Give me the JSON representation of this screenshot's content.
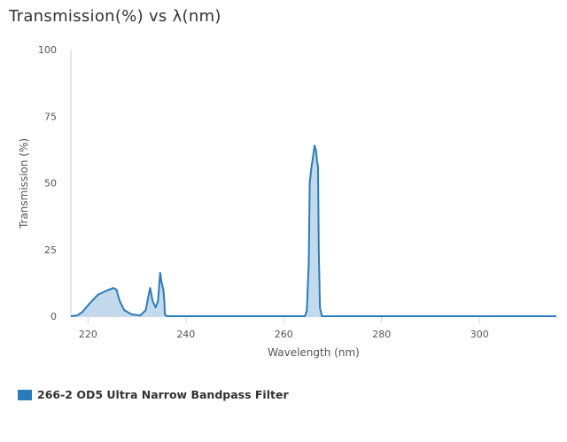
{
  "title": "Transmission(%) vs λ(nm)",
  "chart_data": {
    "type": "area",
    "title": "Transmission(%) vs λ(nm)",
    "xlabel": "Wavelength (nm)",
    "ylabel": "Transmission (%)",
    "xlim": [
      216.5,
      315.7
    ],
    "ylim": [
      0,
      100
    ],
    "xticks": [
      220,
      240,
      260,
      280,
      300
    ],
    "yticks": [
      0,
      25,
      50,
      75,
      100
    ],
    "grid": false,
    "legend_position": "bottom-left",
    "series": [
      {
        "name": "266-2 OD5 Ultra Narrow Bandpass Filter",
        "color": "#2b7bb9",
        "fill": "#bcd6ea",
        "x": [
          216.5,
          217.8,
          218.9,
          219.7,
          220.5,
          222.0,
          223.8,
          225.2,
          225.8,
          226.5,
          227.4,
          228.9,
          230.7,
          231.8,
          232.4,
          232.7,
          233.2,
          233.8,
          234.3,
          234.75,
          235.0,
          235.4,
          235.6,
          235.7,
          236.1,
          264.3,
          264.7,
          265.1,
          265.3,
          265.6,
          266.0,
          266.3,
          266.6,
          266.8,
          267.0,
          267.15,
          267.4,
          267.8,
          315.7
        ],
        "y": [
          0,
          0.3,
          1.7,
          3.5,
          5.1,
          8,
          9.6,
          10.6,
          10,
          5.6,
          2.3,
          0.7,
          0.3,
          2.3,
          8,
          10.6,
          5.6,
          3.3,
          5.6,
          16.3,
          13,
          10,
          5.6,
          0.7,
          0,
          0,
          2,
          20,
          50,
          55,
          60,
          64,
          62,
          58,
          56,
          25,
          3,
          0,
          0
        ]
      }
    ]
  }
}
